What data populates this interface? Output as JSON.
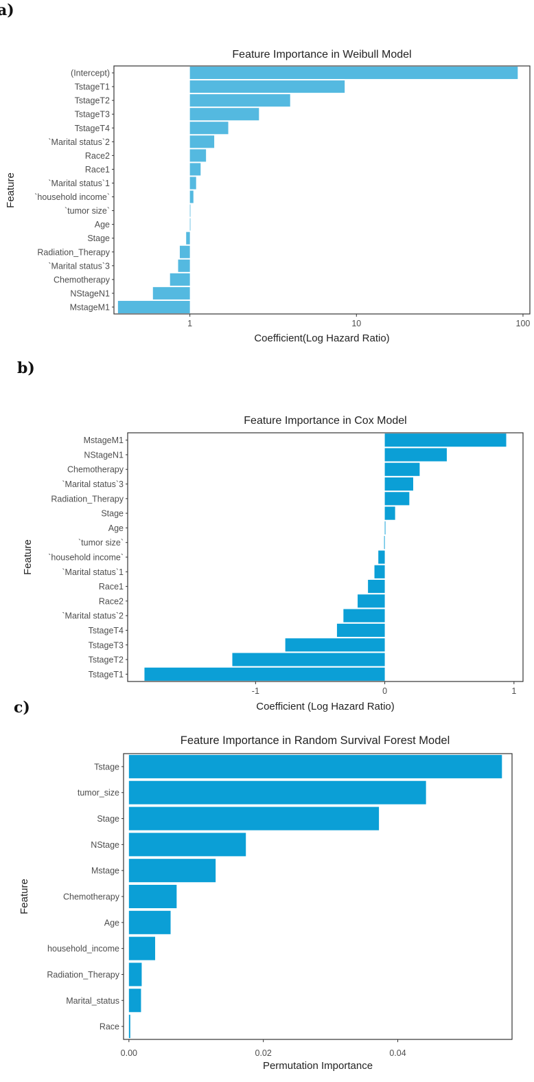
{
  "panel_labels": [
    "a)",
    "b)",
    "c)"
  ],
  "chart_data": [
    {
      "type": "bar",
      "orientation": "horizontal",
      "title": "Feature Importance in Weibull Model",
      "xlabel": "Coefficient(Log Hazard Ratio)",
      "ylabel": "Feature",
      "xscale": "log",
      "xlim": [
        0.35,
        110
      ],
      "baseline": 1,
      "xticks": [
        1,
        10,
        100
      ],
      "xtick_labels": [
        "1",
        "10",
        "100"
      ],
      "bar_color": "#54b9e0",
      "grid": false,
      "categories": [
        "(Intercept)",
        "TstageT1",
        "TstageT2",
        "TstageT3",
        "TstageT4",
        "`Marital status`2",
        "Race2",
        "Race1",
        "`Marital status`1",
        "`household income`",
        "`tumor size`",
        "Age",
        "Stage",
        "Radiation_Therapy",
        "`Marital status`3",
        "Chemotherapy",
        "NStageN1",
        "MstageM1"
      ],
      "values": [
        93,
        8.5,
        4.0,
        2.6,
        1.7,
        1.4,
        1.25,
        1.16,
        1.09,
        1.05,
        1.0,
        1.0,
        0.95,
        0.87,
        0.85,
        0.76,
        0.6,
        0.37
      ]
    },
    {
      "type": "bar",
      "orientation": "horizontal",
      "title": "Feature Importance in Cox Model",
      "xlabel": "Coefficient (Log Hazard Ratio)",
      "ylabel": "Feature",
      "xscale": "linear",
      "xlim": [
        -1.99,
        1.07
      ],
      "baseline": 0,
      "xticks": [
        -1,
        0,
        1
      ],
      "xtick_labels": [
        "-1",
        "0",
        "1"
      ],
      "bar_color": "#0b9fd6",
      "grid": false,
      "categories": [
        "MstageM1",
        "NStageN1",
        "Chemotherapy",
        "`Marital status`3",
        "Radiation_Therapy",
        "Stage",
        "Age",
        "`tumor size`",
        "`household income`",
        "`Marital status`1",
        "Race1",
        "Race2",
        "`Marital status`2",
        "TstageT4",
        "TstageT3",
        "TstageT2",
        "TstageT1"
      ],
      "values": [
        0.94,
        0.48,
        0.27,
        0.22,
        0.19,
        0.08,
        0.005,
        -0.005,
        -0.05,
        -0.08,
        -0.13,
        -0.21,
        -0.32,
        -0.37,
        -0.77,
        -1.18,
        -1.86
      ]
    },
    {
      "type": "bar",
      "orientation": "horizontal",
      "title": "Feature Importance in Random Survival Forest Model",
      "xlabel": "Permutation Importance",
      "ylabel": "Feature",
      "xscale": "linear",
      "xlim": [
        -0.0008,
        0.057
      ],
      "baseline": 0,
      "xticks": [
        0,
        0.02,
        0.04
      ],
      "xtick_labels": [
        "0.00",
        "0.02",
        "0.04"
      ],
      "bar_color": "#0b9fd6",
      "grid": false,
      "categories": [
        "Tstage",
        "tumor_size",
        "Stage",
        "NStage",
        "Mstage",
        "Chemotherapy",
        "Age",
        "household_income",
        "Radiation_Therapy",
        "Marital_status",
        "Race"
      ],
      "values": [
        0.0555,
        0.0442,
        0.0372,
        0.0174,
        0.0129,
        0.0071,
        0.0062,
        0.0039,
        0.0019,
        0.0018,
        0.0002
      ]
    }
  ]
}
